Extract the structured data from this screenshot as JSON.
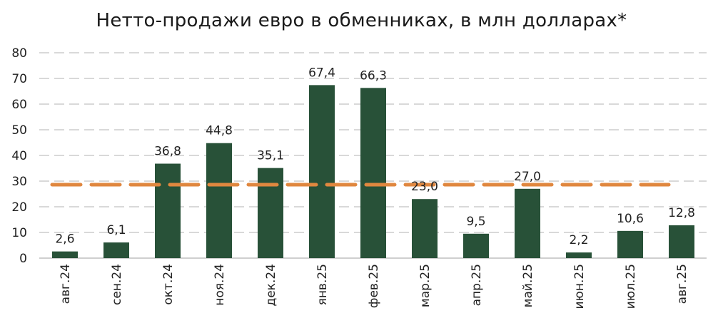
{
  "chart_data": {
    "type": "bar",
    "title": "Нетто-продажи евро в обменниках, в млн долларах*",
    "categories": [
      "авг.24",
      "сен.24",
      "окт.24",
      "ноя.24",
      "дек.24",
      "янв.25",
      "фев.25",
      "мар.25",
      "апр.25",
      "май.25",
      "июн.25",
      "июл.25",
      "авг.25"
    ],
    "values": [
      2.6,
      6.1,
      36.8,
      44.8,
      35.1,
      67.4,
      66.3,
      23.0,
      9.5,
      27.0,
      2.2,
      10.6,
      12.8
    ],
    "value_labels": [
      "2,6",
      "6,1",
      "36,8",
      "44,8",
      "35,1",
      "67,4",
      "66,3",
      "23,0",
      "9,5",
      "27,0",
      "2,2",
      "10,6",
      "12,8"
    ],
    "ylim": [
      0,
      80
    ],
    "yticks": [
      "0",
      "10",
      "20",
      "30",
      "40",
      "50",
      "60",
      "70",
      "80"
    ],
    "average_line": 28.6,
    "grid": true,
    "bar_color": "#285138",
    "average_line_color": "#e0873f",
    "grid_color": "#d9d9d9"
  }
}
